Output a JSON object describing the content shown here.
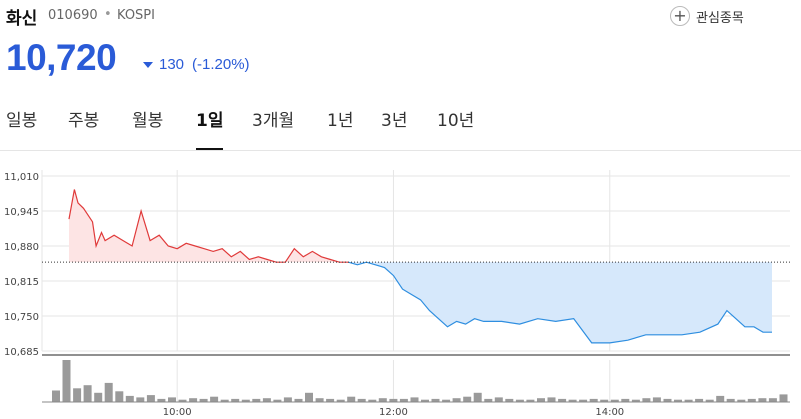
{
  "stock": {
    "name": "화신",
    "code": "010690",
    "separator": "•",
    "market": "KOSPI",
    "watch_label": "관심종목",
    "price": "10,720",
    "change": "130",
    "change_pct": "(-1.20%)",
    "change_direction": "down"
  },
  "tabs": [
    {
      "label": "일봉",
      "active": false
    },
    {
      "label": "주봉",
      "active": false
    },
    {
      "label": "월봉",
      "active": false
    },
    {
      "label": "1일",
      "active": true
    },
    {
      "label": "3개월",
      "active": false
    },
    {
      "label": "1년",
      "active": false
    },
    {
      "label": "3년",
      "active": false
    },
    {
      "label": "10년",
      "active": false
    }
  ],
  "colors": {
    "price_down": "#2a5bd7",
    "above_prev_line": "#e03a3a",
    "above_prev_fill": "#fde4e4",
    "below_prev_line": "#2e8ee0",
    "below_prev_fill": "#d6e8fb",
    "volume_bar": "#9a9a9a",
    "grid": "#e6e6e6"
  },
  "chart_data": {
    "type": "line",
    "x_unit": "time",
    "x_range": [
      "09:00",
      "15:30"
    ],
    "ylim": [
      10685,
      11010
    ],
    "y_ticks": [
      "11,010",
      "10,945",
      "10,880",
      "10,815",
      "10,750",
      "10,685"
    ],
    "y_tick_values": [
      11010,
      10945,
      10880,
      10815,
      10750,
      10685
    ],
    "x_ticks": [
      "10:00",
      "12:00",
      "14:00"
    ],
    "x_tick_values": [
      "10:00",
      "12:00",
      "14:00"
    ],
    "previous_close": 10850,
    "grid": true,
    "series": [
      {
        "x": [
          "09:00",
          "09:03",
          "09:05",
          "09:08",
          "09:10",
          "09:13",
          "09:15",
          "09:18",
          "09:20",
          "09:25",
          "09:30",
          "09:35",
          "09:40",
          "09:45",
          "09:50",
          "09:55",
          "10:00",
          "10:05",
          "10:10",
          "10:15",
          "10:20",
          "10:25",
          "10:30",
          "10:35",
          "10:40",
          "10:45",
          "10:50",
          "10:55",
          "11:00",
          "11:05",
          "11:10",
          "11:15",
          "11:20",
          "11:25",
          "11:30",
          "11:35",
          "11:40",
          "11:45",
          "11:50",
          "11:55",
          "12:00",
          "12:05",
          "12:10",
          "12:15",
          "12:20",
          "12:25",
          "12:30",
          "12:35",
          "12:40",
          "12:45",
          "12:50",
          "13:00",
          "13:10",
          "13:20",
          "13:30",
          "13:40",
          "13:50",
          "14:00",
          "14:10",
          "14:20",
          "14:30",
          "14:40",
          "14:50",
          "15:00",
          "15:05",
          "15:10",
          "15:15",
          "15:20",
          "15:25",
          "15:30"
        ],
        "values": [
          10930,
          10985,
          10960,
          10950,
          10940,
          10925,
          10880,
          10905,
          10890,
          10900,
          10890,
          10880,
          10945,
          10890,
          10900,
          10880,
          10875,
          10885,
          10880,
          10875,
          10870,
          10875,
          10860,
          10870,
          10855,
          10860,
          10855,
          10850,
          10850,
          10875,
          10860,
          10870,
          10860,
          10855,
          10850,
          10850,
          10845,
          10850,
          10845,
          10840,
          10825,
          10800,
          10790,
          10780,
          10760,
          10745,
          10730,
          10740,
          10735,
          10745,
          10740,
          10740,
          10735,
          10745,
          10740,
          10745,
          10700,
          10700,
          10705,
          10715,
          10715,
          10715,
          10720,
          10735,
          10760,
          10745,
          10730,
          10730,
          10720,
          10720
        ]
      }
    ],
    "volume_ylim": [
      0,
      55
    ],
    "volume": [
      15,
      55,
      18,
      22,
      12,
      25,
      14,
      8,
      6,
      9,
      4,
      6,
      3,
      5,
      4,
      7,
      3,
      4,
      3,
      4,
      5,
      3,
      6,
      4,
      12,
      5,
      4,
      3,
      7,
      4,
      3,
      5,
      4,
      4,
      6,
      3,
      4,
      3,
      5,
      7,
      12,
      4,
      6,
      4,
      3,
      3,
      5,
      6,
      4,
      3,
      3,
      4,
      3,
      3,
      4,
      3,
      5,
      6,
      4,
      3,
      3,
      4,
      3,
      8,
      4,
      3,
      4,
      5,
      5,
      10
    ]
  }
}
